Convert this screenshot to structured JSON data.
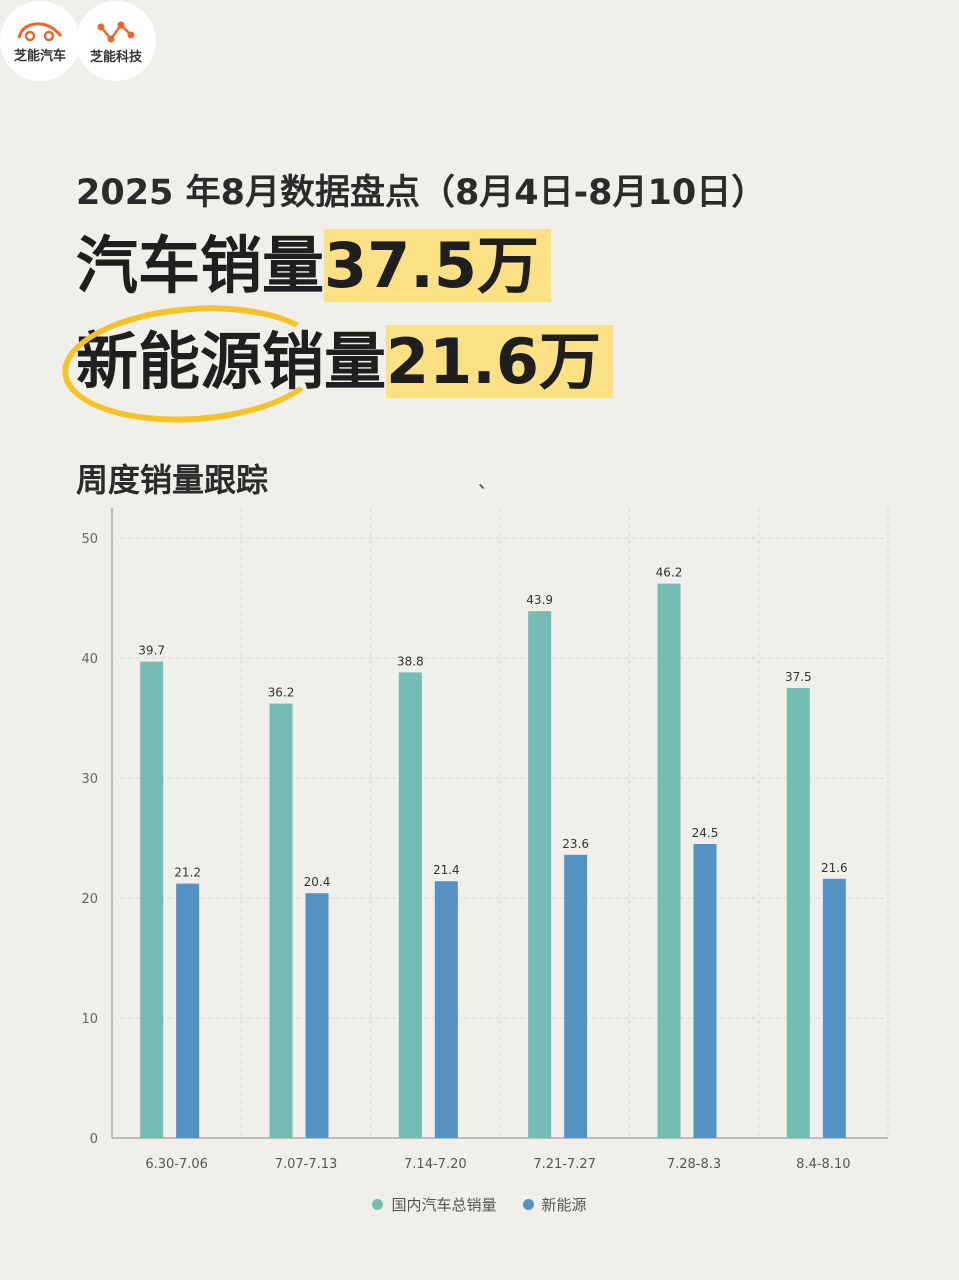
{
  "logos": {
    "left_text": "芝能汽车",
    "right_text": "芝能科技",
    "left_icon": "car-outline-icon",
    "right_icon": "molecule-icon",
    "accent": "#e8672f"
  },
  "header": {
    "subtitle": "2025 年8月数据盘点（8月4日-8月10日）",
    "line1_prefix": "汽车销量",
    "line1_value": "37.5万",
    "line2_prefix": "新能源销量",
    "line2_value": "21.6万",
    "highlight_color": "#fbe084",
    "circle_color": "#f5c326"
  },
  "section": {
    "title": "周度销量跟踪",
    "stray": "、"
  },
  "chart_data": {
    "type": "bar",
    "categories": [
      "6.30-7.06",
      "7.07-7.13",
      "7.14-7.20",
      "7.21-7.27",
      "7.28-8.3",
      "8.4-8.10"
    ],
    "series": [
      {
        "name": "国内汽车总销量",
        "values": [
          39.7,
          36.2,
          38.8,
          43.9,
          46.2,
          37.5
        ],
        "color": "#74bdb2"
      },
      {
        "name": "新能源",
        "values": [
          21.2,
          20.4,
          21.4,
          23.6,
          24.5,
          21.6
        ],
        "color": "#5592c4"
      }
    ],
    "ylim": [
      0,
      50
    ],
    "yticks": [
      0,
      10,
      20,
      30,
      40,
      50
    ],
    "grid": true,
    "legend_position": "bottom-center",
    "data_labels": true
  }
}
